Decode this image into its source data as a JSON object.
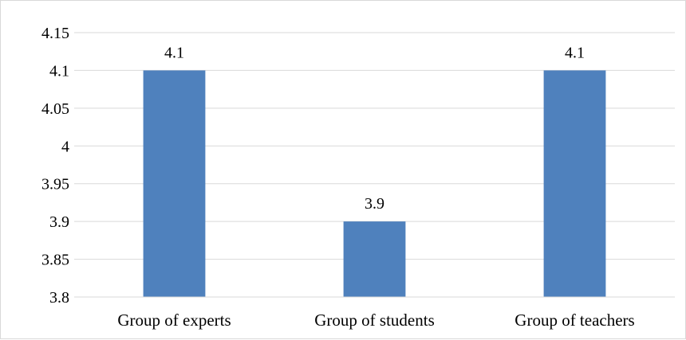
{
  "chart_data": {
    "type": "bar",
    "categories": [
      "Group of experts",
      "Group of students",
      "Group of teachers"
    ],
    "values": [
      4.1,
      3.9,
      4.1
    ],
    "data_labels": [
      "4.1",
      "3.9",
      "4.1"
    ],
    "title": "",
    "xlabel": "",
    "ylabel": "",
    "ylim": [
      3.8,
      4.15
    ],
    "yticks": [
      3.8,
      3.85,
      3.9,
      3.95,
      4,
      4.05,
      4.1,
      4.15
    ],
    "ytick_labels": [
      "3.8",
      "3.85",
      "3.9",
      "3.95",
      "4",
      "4.05",
      "4.1",
      "4.15"
    ],
    "grid": true,
    "legend": "none",
    "bar_color": "#4f81bd"
  }
}
